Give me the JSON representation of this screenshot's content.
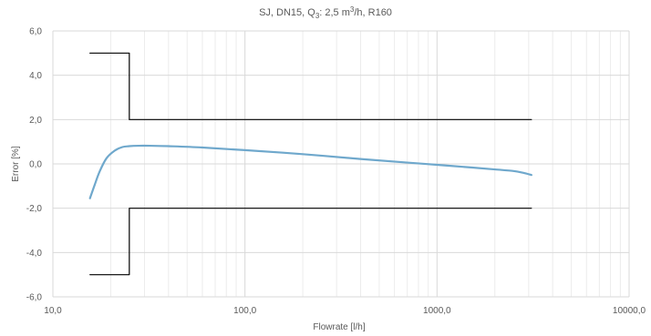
{
  "chart_data": {
    "type": "line",
    "title": {
      "prefix": "SJ, DN15, Q",
      "sub": "3",
      "mid": ": 2,5 m",
      "sup": "3",
      "suffix": "/h, R160"
    },
    "xlabel": "Flowrate [l/h]",
    "ylabel": "Error [%]",
    "x_scale": "log",
    "xlim": [
      10,
      10000
    ],
    "ylim": [
      -6,
      6
    ],
    "x_ticks": [
      10,
      100,
      1000,
      10000
    ],
    "x_tick_labels": [
      "10,0",
      "100,0",
      "1000,0",
      "10000,0"
    ],
    "y_ticks": [
      -6,
      -4,
      -2,
      0,
      2,
      4,
      6
    ],
    "y_tick_labels": [
      "-6,0",
      "-4,0",
      "-2,0",
      "0,0",
      "2,0",
      "4,0",
      "6,0"
    ],
    "grid": true,
    "legend": "none",
    "series": [
      {
        "color": "#6fa8cc",
        "style": "smooth",
        "x": [
          15.6,
          16.5,
          17.5,
          19,
          21,
          23,
          25,
          28,
          32,
          40,
          60,
          100,
          200,
          400,
          700,
          1000,
          1500,
          2000,
          2500,
          2800,
          3100
        ],
        "y": [
          -1.55,
          -0.95,
          -0.35,
          0.25,
          0.6,
          0.76,
          0.8,
          0.82,
          0.82,
          0.8,
          0.74,
          0.62,
          0.44,
          0.22,
          0.06,
          -0.04,
          -0.16,
          -0.25,
          -0.32,
          -0.4,
          -0.5
        ]
      },
      {
        "color": "#000000",
        "style": "step",
        "x": [
          15.6,
          25,
          25,
          3100
        ],
        "y": [
          5,
          5,
          2,
          2
        ]
      },
      {
        "color": "#000000",
        "style": "step",
        "x": [
          15.6,
          25,
          25,
          3100
        ],
        "y": [
          -5,
          -5,
          -2,
          -2
        ]
      }
    ]
  }
}
